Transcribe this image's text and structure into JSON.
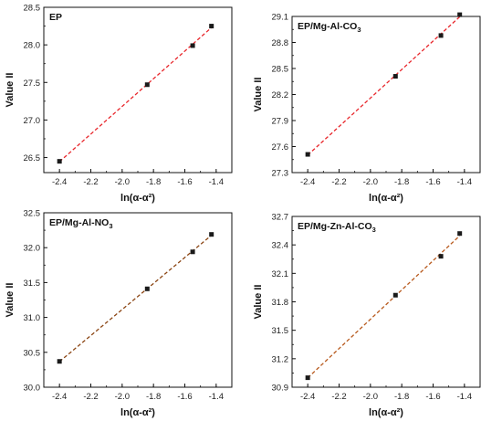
{
  "chart_data": [
    {
      "type": "scatter",
      "title": "EP",
      "title_sub": "",
      "xlabel": "ln(α-α²)",
      "ylabel": "Value II",
      "xlim": [
        -2.5,
        -1.3
      ],
      "ylim": [
        26.3,
        28.5
      ],
      "xticks": [
        "-2.4",
        "-2.2",
        "-2.0",
        "-1.8",
        "-1.6",
        "-1.4"
      ],
      "yticks": [
        "26.5",
        "27.0",
        "27.5",
        "28.0",
        "28.5"
      ],
      "fit_color": "#e8262b",
      "marker_color": "#1a1a1a",
      "x": [
        -2.4,
        -1.84,
        -1.55,
        -1.43
      ],
      "y": [
        26.45,
        27.47,
        27.99,
        28.25
      ]
    },
    {
      "type": "scatter",
      "title": "EP/Mg-Al-CO",
      "title_sub": "3",
      "xlabel": "ln(α-α²)",
      "ylabel": "Value II",
      "xlim": [
        -2.5,
        -1.3
      ],
      "ylim": [
        27.3,
        29.1
      ],
      "xticks": [
        "-2.4",
        "-2.2",
        "-2.0",
        "-1.8",
        "-1.6",
        "-1.4"
      ],
      "yticks": [
        "27.3",
        "27.6",
        "27.9",
        "28.2",
        "28.5",
        "28.8",
        "29.1"
      ],
      "fit_color": "#e8262b",
      "marker_color": "#1a1a1a",
      "x": [
        -2.4,
        -1.84,
        -1.55,
        -1.43
      ],
      "y": [
        27.51,
        28.41,
        28.88,
        29.12
      ]
    },
    {
      "type": "scatter",
      "title": "EP/Mg-Al-NO",
      "title_sub": "3",
      "xlabel": "ln(α-α²)",
      "ylabel": "Value II",
      "xlim": [
        -2.5,
        -1.3
      ],
      "ylim": [
        30.0,
        32.5
      ],
      "xticks": [
        "-2.4",
        "-2.2",
        "-2.0",
        "-1.8",
        "-1.6",
        "-1.4"
      ],
      "yticks": [
        "30.0",
        "30.5",
        "31.0",
        "31.5",
        "32.0",
        "32.5"
      ],
      "fit_color": "#8b4513",
      "marker_color": "#1a1a1a",
      "x": [
        -2.4,
        -1.84,
        -1.55,
        -1.43
      ],
      "y": [
        30.37,
        31.41,
        31.94,
        32.19
      ]
    },
    {
      "type": "scatter",
      "title": "EP/Mg-Zn-Al-CO",
      "title_sub": "3",
      "xlabel": "ln(α-α²)",
      "ylabel": "Value II",
      "xlim": [
        -2.5,
        -1.3
      ],
      "ylim": [
        30.9,
        32.7
      ],
      "xticks": [
        "-2.4",
        "-2.2",
        "-2.0",
        "-1.8",
        "-1.6",
        "-1.4"
      ],
      "yticks": [
        "30.9",
        "31.2",
        "31.5",
        "31.8",
        "32.1",
        "32.4",
        "32.7"
      ],
      "fit_color": "#b85a1e",
      "marker_color": "#1a1a1a",
      "x": [
        -2.4,
        -1.84,
        -1.55,
        -1.43
      ],
      "y": [
        31.0,
        31.87,
        32.28,
        32.52
      ]
    }
  ]
}
